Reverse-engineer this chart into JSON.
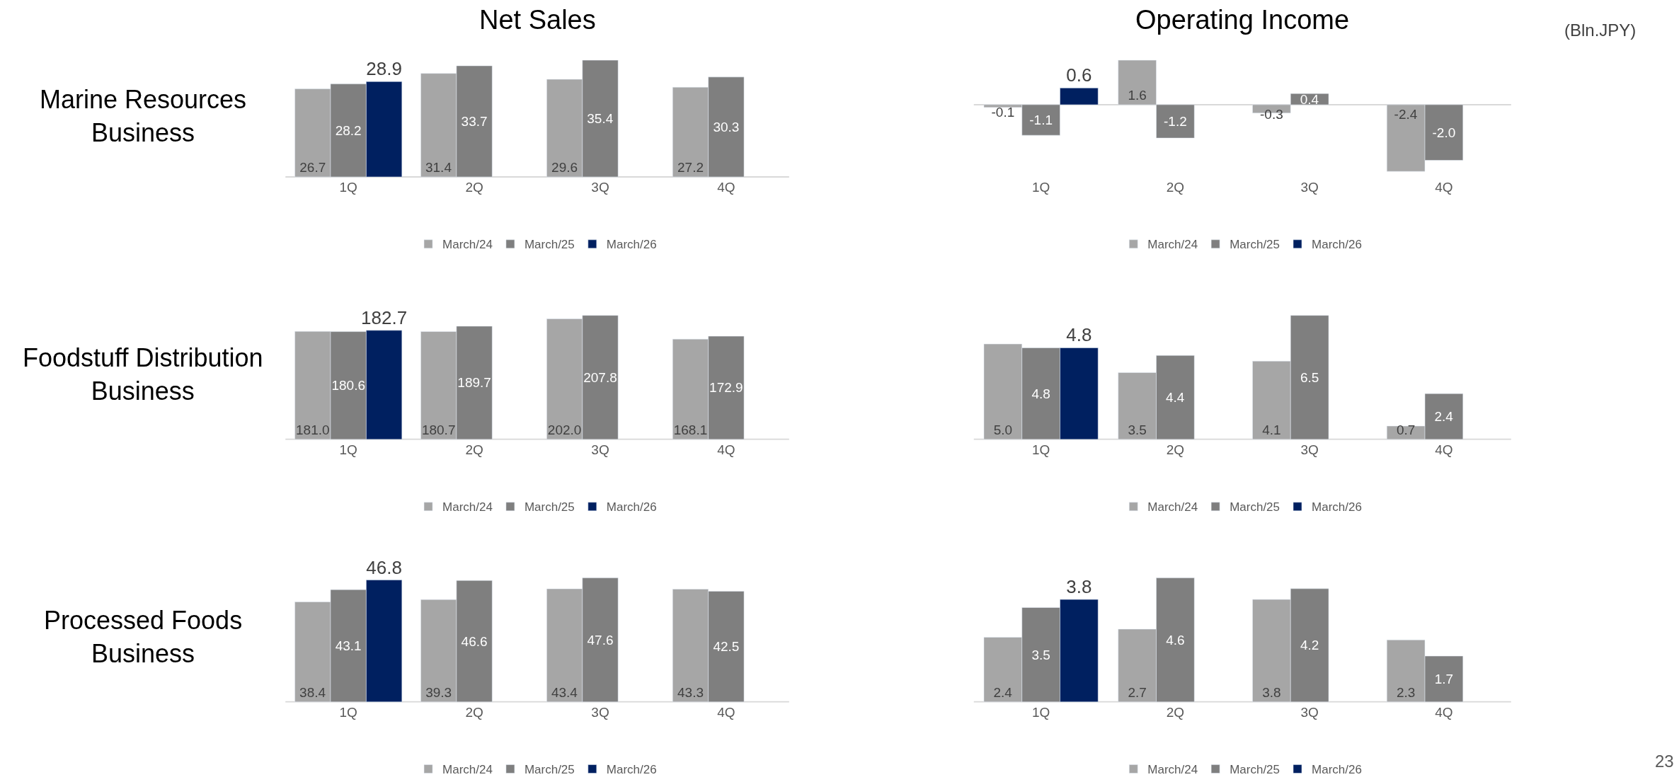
{
  "chart_data": [
    {
      "type": "bar",
      "title": "Net Sales",
      "ylabel": "Marine Resources Business",
      "categories": [
        "1Q",
        "2Q",
        "3Q",
        "4Q"
      ],
      "legend": "bottom",
      "series": [
        {
          "name": "March/24",
          "color": "#a6a6a6",
          "values": [
            26.7,
            31.4,
            29.6,
            27.2
          ],
          "value_labels": [
            "26.7",
            "31.4",
            "29.6",
            "27.2"
          ]
        },
        {
          "name": "March/25",
          "color": "#7f7f7f",
          "values": [
            28.2,
            33.7,
            35.4,
            30.3
          ],
          "value_labels": [
            "28.2",
            "33.7",
            "35.4",
            "30.3"
          ]
        },
        {
          "name": "March/26",
          "color": "#002060",
          "values": [
            28.9,
            null,
            null,
            null
          ],
          "value_labels": [
            "28.9",
            null,
            null,
            null
          ]
        }
      ]
    },
    {
      "type": "bar",
      "title": "Operating Income",
      "annotations": [
        "(Bln.JPY)"
      ],
      "categories": [
        "1Q",
        "2Q",
        "3Q",
        "4Q"
      ],
      "legend": "bottom",
      "series": [
        {
          "name": "March/24",
          "color": "#a6a6a6",
          "values": [
            -0.1,
            1.6,
            -0.3,
            -2.4
          ],
          "value_labels": [
            "-0.1",
            "1.6",
            "-0.3",
            "-2.4"
          ]
        },
        {
          "name": "March/25",
          "color": "#7f7f7f",
          "values": [
            -1.1,
            -1.2,
            0.4,
            -2.0
          ],
          "value_labels": [
            "-1.1",
            "-1.2",
            "0.4",
            "-2.0"
          ]
        },
        {
          "name": "March/26",
          "color": "#002060",
          "values": [
            0.6,
            null,
            null,
            null
          ],
          "value_labels": [
            "0.6",
            null,
            null,
            null
          ]
        }
      ]
    },
    {
      "type": "bar",
      "ylabel": "Foodstuff Distribution Business",
      "categories": [
        "1Q",
        "2Q",
        "3Q",
        "4Q"
      ],
      "legend": "bottom",
      "series": [
        {
          "name": "March/24",
          "color": "#a6a6a6",
          "values": [
            181.0,
            180.7,
            202.0,
            168.1
          ],
          "value_labels": [
            "181.0",
            "180.7",
            "202.0",
            "168.1"
          ]
        },
        {
          "name": "March/25",
          "color": "#7f7f7f",
          "values": [
            180.6,
            189.7,
            207.8,
            172.9
          ],
          "value_labels": [
            "180.6",
            "189.7",
            "207.8",
            "172.9"
          ]
        },
        {
          "name": "March/26",
          "color": "#002060",
          "values": [
            182.7,
            null,
            null,
            null
          ],
          "value_labels": [
            "182.7",
            null,
            null,
            null
          ]
        }
      ]
    },
    {
      "type": "bar",
      "categories": [
        "1Q",
        "2Q",
        "3Q",
        "4Q"
      ],
      "legend": "bottom",
      "series": [
        {
          "name": "March/24",
          "color": "#a6a6a6",
          "values": [
            5.0,
            3.5,
            4.1,
            0.7
          ],
          "value_labels": [
            "5.0",
            "3.5",
            "4.1",
            "0.7"
          ]
        },
        {
          "name": "March/25",
          "color": "#7f7f7f",
          "values": [
            4.8,
            4.4,
            6.5,
            2.4
          ],
          "value_labels": [
            "4.8",
            "4.4",
            "6.5",
            "2.4"
          ]
        },
        {
          "name": "March/26",
          "color": "#002060",
          "values": [
            4.8,
            null,
            null,
            null
          ],
          "value_labels": [
            "4.8",
            null,
            null,
            null
          ]
        }
      ]
    },
    {
      "type": "bar",
      "ylabel": "Processed Foods Business",
      "categories": [
        "1Q",
        "2Q",
        "3Q",
        "4Q"
      ],
      "legend": "bottom",
      "series": [
        {
          "name": "March/24",
          "color": "#a6a6a6",
          "values": [
            38.4,
            39.3,
            43.4,
            43.3
          ],
          "value_labels": [
            "38.4",
            "39.3",
            "43.4",
            "43.3"
          ]
        },
        {
          "name": "March/25",
          "color": "#7f7f7f",
          "values": [
            43.1,
            46.6,
            47.6,
            42.5
          ],
          "value_labels": [
            "43.1",
            "46.6",
            "47.6",
            "42.5"
          ]
        },
        {
          "name": "March/26",
          "color": "#002060",
          "values": [
            46.8,
            null,
            null,
            null
          ],
          "value_labels": [
            "46.8",
            null,
            null,
            null
          ]
        }
      ]
    },
    {
      "type": "bar",
      "annotations": [
        "23"
      ],
      "categories": [
        "1Q",
        "2Q",
        "3Q",
        "4Q"
      ],
      "legend": "bottom",
      "series": [
        {
          "name": "March/24",
          "color": "#a6a6a6",
          "values": [
            2.4,
            2.7,
            3.8,
            2.3
          ],
          "value_labels": [
            "2.4",
            "2.7",
            "3.8",
            "2.3"
          ]
        },
        {
          "name": "March/25",
          "color": "#7f7f7f",
          "values": [
            3.5,
            4.6,
            4.2,
            1.7
          ],
          "value_labels": [
            "3.5",
            "4.6",
            "4.2",
            "1.7"
          ]
        },
        {
          "name": "March/26",
          "color": "#002060",
          "values": [
            3.8,
            null,
            null,
            null
          ],
          "value_labels": [
            "3.8",
            null,
            null,
            null
          ]
        }
      ]
    }
  ]
}
